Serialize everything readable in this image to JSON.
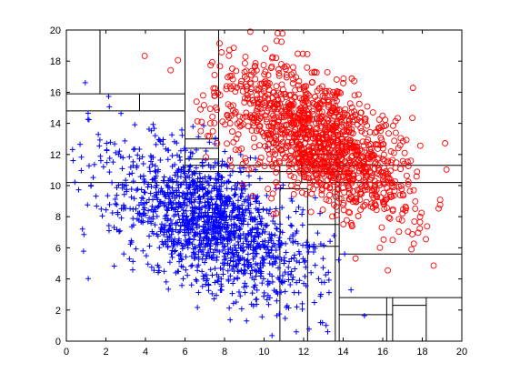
{
  "chart_data": {
    "type": "scatter",
    "title": "",
    "xlabel": "",
    "ylabel": "",
    "xlim": [
      0,
      20
    ],
    "ylim": [
      0,
      20
    ],
    "x_ticks": [
      "0",
      "2",
      "4",
      "6",
      "8",
      "10",
      "12",
      "14",
      "16",
      "18",
      "20"
    ],
    "y_ticks": [
      "0",
      "2",
      "4",
      "6",
      "8",
      "10",
      "12",
      "14",
      "16",
      "18",
      "20"
    ],
    "grid": false,
    "legend": "none",
    "series": [
      {
        "marker": "plus",
        "color": "#0000ff",
        "count": 1500,
        "distribution": {
          "center": [
            7.2,
            7.6
          ],
          "principal_axis": [
            0.7071,
            -0.7071
          ],
          "spread_along": 3.1,
          "spread_across": 1.7
        }
      },
      {
        "marker": "circle-open",
        "color": "#ff0000",
        "count": 1300,
        "distribution": {
          "center": [
            12.7,
            13.0
          ],
          "principal_axis": [
            0.7071,
            -0.7071
          ],
          "spread_along": 3.0,
          "spread_across": 1.6
        }
      }
    ],
    "partition_lines": [
      {
        "x1": 0,
        "y1": 10.2,
        "x2": 20,
        "y2": 10.2
      },
      {
        "x1": 14,
        "y1": 11.3,
        "x2": 20,
        "y2": 11.3
      },
      {
        "x1": 6,
        "y1": 11.3,
        "x2": 14,
        "y2": 11.3
      },
      {
        "x1": 6,
        "y1": 20,
        "x2": 6,
        "y2": 10.2
      },
      {
        "x1": 7.7,
        "y1": 20,
        "x2": 7.7,
        "y2": 10.2
      },
      {
        "x1": 1.7,
        "y1": 20,
        "x2": 1.7,
        "y2": 15.9
      },
      {
        "x1": 0,
        "y1": 15.9,
        "x2": 6,
        "y2": 15.9
      },
      {
        "x1": 3.7,
        "y1": 15.9,
        "x2": 3.7,
        "y2": 14.8
      },
      {
        "x1": 0,
        "y1": 14.8,
        "x2": 6,
        "y2": 14.8
      },
      {
        "x1": 6,
        "y1": 13.0,
        "x2": 7.7,
        "y2": 13.0
      },
      {
        "x1": 6,
        "y1": 12.4,
        "x2": 7.7,
        "y2": 12.4
      },
      {
        "x1": 6,
        "y1": 11.7,
        "x2": 7.7,
        "y2": 11.7
      },
      {
        "x1": 10.8,
        "y1": 11.3,
        "x2": 10.8,
        "y2": 10.2
      },
      {
        "x1": 11.9,
        "y1": 12.0,
        "x2": 14,
        "y2": 12.0
      },
      {
        "x1": 11.9,
        "y1": 12.0,
        "x2": 11.9,
        "y2": 10.2
      },
      {
        "x1": 13.7,
        "y1": 12.0,
        "x2": 13.7,
        "y2": 10.2
      },
      {
        "x1": 6,
        "y1": 10.9,
        "x2": 14,
        "y2": 10.9
      },
      {
        "x1": 10.8,
        "y1": 9.8,
        "x2": 12.2,
        "y2": 9.8
      },
      {
        "x1": 10.8,
        "y1": 9.8,
        "x2": 10.8,
        "y2": 0
      },
      {
        "x1": 12.2,
        "y1": 9.8,
        "x2": 12.2,
        "y2": 0
      },
      {
        "x1": 12.2,
        "y1": 7.5,
        "x2": 13.8,
        "y2": 7.5
      },
      {
        "x1": 12.2,
        "y1": 6.1,
        "x2": 13.8,
        "y2": 6.1
      },
      {
        "x1": 13.6,
        "y1": 10.2,
        "x2": 13.6,
        "y2": 0
      },
      {
        "x1": 13.8,
        "y1": 10.2,
        "x2": 13.8,
        "y2": 0
      },
      {
        "x1": 13.8,
        "y1": 5.6,
        "x2": 20,
        "y2": 5.6
      },
      {
        "x1": 13.8,
        "y1": 2.8,
        "x2": 20,
        "y2": 2.8
      },
      {
        "x1": 13.8,
        "y1": 1.7,
        "x2": 16.5,
        "y2": 1.7
      },
      {
        "x1": 16.2,
        "y1": 2.8,
        "x2": 16.2,
        "y2": 0
      },
      {
        "x1": 16.5,
        "y1": 2.8,
        "x2": 16.5,
        "y2": 0
      },
      {
        "x1": 18.2,
        "y1": 2.8,
        "x2": 18.2,
        "y2": 0
      },
      {
        "x1": 16.5,
        "y1": 2.3,
        "x2": 18.2,
        "y2": 2.3
      }
    ]
  }
}
